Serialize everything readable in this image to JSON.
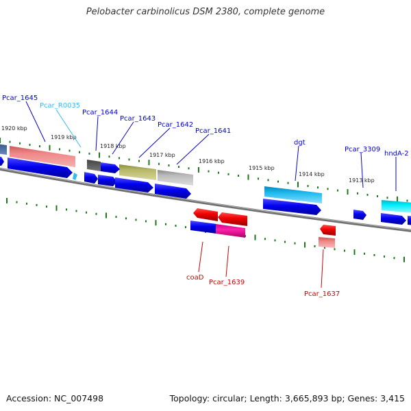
{
  "header": {
    "title": "Pelobacter carbinolicus DSM 2380, complete genome"
  },
  "footer": {
    "accession": "Accession: NC_007498",
    "summary": "Topology: circular; Length: 3,665,893 bp; Genes: 3,415"
  },
  "scale_labels": [
    "1920 kbp",
    "1919 kbp",
    "1918 kbp",
    "1917 kbp",
    "1916 kbp",
    "1915 kbp",
    "1914 kbp",
    "1913 kbp"
  ],
  "gene_labels": {
    "pcar_1645": "Pcar_1645",
    "pcar_r0035": "Pcar_R0035",
    "pcar_1644": "Pcar_1644",
    "pcar_1643": "Pcar_1643",
    "pcar_1642": "Pcar_1642",
    "pcar_1641": "Pcar_1641",
    "dgt": "dgt",
    "pcar_3309": "Pcar_3309",
    "hnda_2": "hndA-2",
    "coad": "coaD",
    "pcar_1639": "Pcar_1639",
    "pcar_1637": "Pcar_1637"
  },
  "colors": {
    "label_blue": "#0000cc",
    "label_cyan": "#33bbee",
    "label_red": "#cc0000",
    "cds_blue": "#0000ee",
    "tick_green": "#1a7a1a",
    "backbone": "#808080"
  }
}
